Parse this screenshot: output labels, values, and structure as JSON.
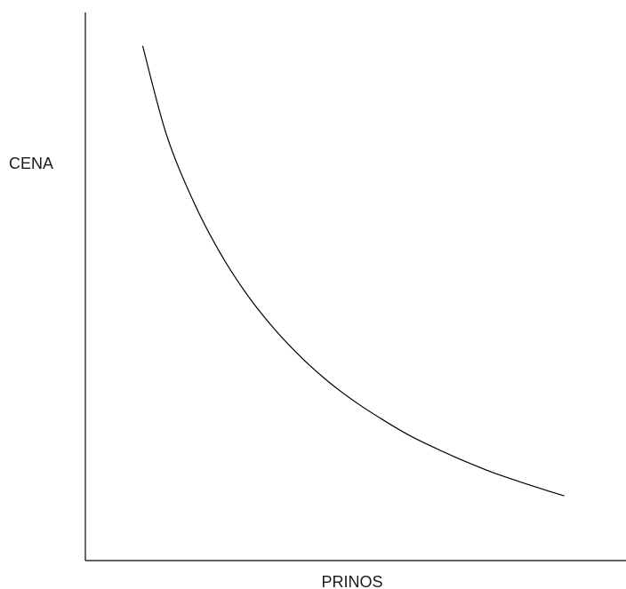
{
  "chart_data": {
    "type": "line",
    "title": "",
    "xlabel": "PRINOS",
    "ylabel": "CENA",
    "xlim": [
      0,
      1
    ],
    "ylim": [
      0,
      1
    ],
    "grid": false,
    "series": [
      {
        "color": "#000000",
        "x": [
          0.106,
          0.15,
          0.2,
          0.25,
          0.3,
          0.35,
          0.4,
          0.45,
          0.5,
          0.55,
          0.6,
          0.65,
          0.7,
          0.75,
          0.8,
          0.85,
          0.886
        ],
        "y": [
          0.939,
          0.777,
          0.655,
          0.56,
          0.484,
          0.422,
          0.37,
          0.326,
          0.289,
          0.257,
          0.228,
          0.204,
          0.182,
          0.162,
          0.145,
          0.129,
          0.118
        ]
      }
    ]
  }
}
